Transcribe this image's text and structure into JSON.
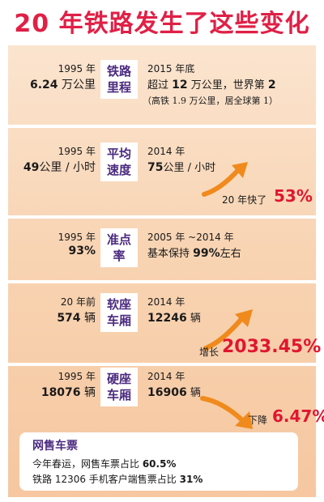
{
  "title": "20 年铁路发生了这些变化",
  "rows": [
    {
      "label_line1": "铁路",
      "label_line2": "里程",
      "left_year": "1995 年",
      "left_value": "6.24",
      "left_unit": " 万公里",
      "right_year": "2015 年底",
      "right_prefix": "超过 ",
      "right_value": "12",
      "right_suffix": " 万公里，世界第 ",
      "right_rank": "2",
      "right_note": "（高铁 1.9 万公里，居全球第 1）"
    },
    {
      "label_line1": "平均",
      "label_line2": "速度",
      "left_year": "1995 年",
      "left_value": "49",
      "left_unit": "公里 / 小时",
      "right_year": "2014 年",
      "right_value": "75",
      "right_suffix": "公里 / 小时",
      "change_label": "20 年快了",
      "change_value": "53%"
    },
    {
      "label_line1": "准点",
      "label_line2": "率",
      "left_year": "1995 年",
      "left_value": "93%",
      "right_year": "2005 年 ~2014 年",
      "right_prefix": "基本保持 ",
      "right_value": "99%",
      "right_suffix": "左右"
    },
    {
      "label_line1": "软座",
      "label_line2": "车厢",
      "left_year": "20 年前",
      "left_value": "574",
      "left_unit": " 辆",
      "right_year": "2014 年",
      "right_value": "12246",
      "right_suffix": " 辆",
      "change_label": "增长",
      "change_value": "2033.45%"
    },
    {
      "label_line1": "硬座",
      "label_line2": "车厢",
      "left_year": "1995 年",
      "left_value": "18076",
      "left_unit": " 辆",
      "right_year": "2014 年",
      "right_value": "16906",
      "right_suffix": " 辆",
      "change_label": "下降",
      "change_value": "6.47%"
    }
  ],
  "online_tickets": {
    "title": "网售车票",
    "line1_text": "今年春运，网售车票占比 ",
    "line1_value": "60.5%",
    "line2_text": "铁路 12306 手机客户端售票占比 ",
    "line2_value": "31%"
  },
  "colors": {
    "title_red": "#e02046",
    "label_purple": "#4b2a7f",
    "highlight_red": "#e0162f",
    "arrow_orange": "#f08a1c"
  }
}
